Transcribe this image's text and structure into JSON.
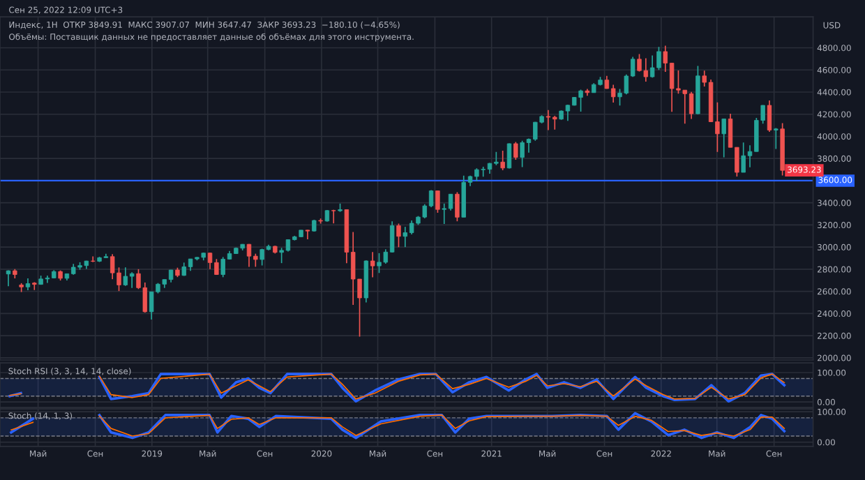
{
  "chart_data": [
    {
      "type": "candlestick",
      "title": "Индекс, 1Н  ОТКР 3849.91  МАКС 3907.07  МИН 3647.47  ЗАКР 3693.23  −180.10 (−4.65%)",
      "ylabel": "USD",
      "annotations": [
        "Сен 25, 2022 12:09 UTC+3",
        "Объёмы: Поставщик данных не предоставляет данные об объёмах для этого инструмента.",
        {
          "text": "3693.23",
          "x": "2022-11-05",
          "y": 3693.23
        }
      ],
      "colors": [
        "#26a69a",
        "#ef5350",
        "#ef5350",
        "#26a69a",
        "#ef5350",
        "#26a69a",
        "#26a69a",
        "#26a69a",
        "#ef5350",
        "#26a69a",
        "#26a69a",
        "#26a69a",
        "#26a69a",
        "#ef5350",
        "#26a69a",
        "#26a69a",
        "#ef5350",
        "#ef5350",
        "#26a69a",
        "#26a69a",
        "#ef5350",
        "#ef5350",
        "#26a69a",
        "#26a69a",
        "#26a69a",
        "#26a69a",
        "#ef5350",
        "#26a69a",
        "#26a69a",
        "#26a69a",
        "#26a69a",
        "#ef5350",
        "#ef5350",
        "#26a69a",
        "#26a69a",
        "#26a69a",
        "#26a69a",
        "#ef5350",
        "#ef5350",
        "#26a69a",
        "#26a69a",
        "#ef5350",
        "#26a69a",
        "#26a69a",
        "#26a69a",
        "#26a69a",
        "#ef5350",
        "#26a69a",
        "#ef5350",
        "#26a69a",
        "#ef5350",
        "#26a69a",
        "#ef5350",
        "#ef5350",
        "#ef5350",
        "#26a69a",
        "#ef5350",
        "#26a69a",
        "#26a69a",
        "#26a69a",
        "#ef5350",
        "#26a69a",
        "#26a69a",
        "#26a69a",
        "#26a69a",
        "#26a69a",
        "#ef5350",
        "#26a69a",
        "#26a69a",
        "#ef5350",
        "#26a69a",
        "#26a69a",
        "#26a69a",
        "#26a69a",
        "#26a69a",
        "#26a69a",
        "#ef5350",
        "#26a69a",
        "#ef5350",
        "#26a69a",
        "#26a69a",
        "#26a69a",
        "#26a69a",
        "#ef5350",
        "#ef5350",
        "#26a69a",
        "#26a69a",
        "#26a69a",
        "#26a69a",
        "#ef5350",
        "#26a69a",
        "#26a69a",
        "#ef5350",
        "#ef5350",
        "#26a69a",
        "#26a69a",
        "#26a69a",
        "#ef5350",
        "#ef5350",
        "#26a69a",
        "#26a69a",
        "#ef5350",
        "#ef5350",
        "#ef5350",
        "#ef5350",
        "#ef5350",
        "#26a69a",
        "#ef5350",
        "#ef5350",
        "#ef5350",
        "#26a69a",
        "#ef5350",
        "#ef5350",
        "#26a69a",
        "#26a69a",
        "#26a69a",
        "#26a69a",
        "#ef5350",
        "#26a69a",
        "#ef5350"
      ],
      "x": [
        "2018-02-26",
        "2018-03-12",
        "2018-03-26",
        "2018-04-09",
        "2018-04-23",
        "2018-05-07",
        "2018-05-21",
        "2018-06-04",
        "2018-06-18",
        "2018-07-02",
        "2018-07-16",
        "2018-07-30",
        "2018-08-13",
        "2018-08-27",
        "2018-09-10",
        "2018-09-24",
        "2018-10-08",
        "2018-10-22",
        "2018-11-05",
        "2018-11-19",
        "2018-12-03",
        "2018-12-17",
        "2018-12-31",
        "2019-01-14",
        "2019-01-28",
        "2019-02-11",
        "2019-02-25",
        "2019-03-11",
        "2019-03-25",
        "2019-04-08",
        "2019-04-22",
        "2019-05-06",
        "2019-05-20",
        "2019-06-03",
        "2019-06-17",
        "2019-07-01",
        "2019-07-15",
        "2019-07-29",
        "2019-08-12",
        "2019-08-26",
        "2019-09-09",
        "2019-09-23",
        "2019-10-07",
        "2019-10-21",
        "2019-11-04",
        "2019-11-18",
        "2019-12-02",
        "2019-12-16",
        "2019-12-30",
        "2020-01-13",
        "2020-01-27",
        "2020-02-10",
        "2020-02-24",
        "2020-03-09",
        "2020-03-23",
        "2020-04-06",
        "2020-04-20",
        "2020-05-04",
        "2020-05-18",
        "2020-06-01",
        "2020-06-15",
        "2020-06-29",
        "2020-07-13",
        "2020-07-27",
        "2020-08-10",
        "2020-08-24",
        "2020-09-07",
        "2020-09-21",
        "2020-10-05",
        "2020-10-19",
        "2020-11-02",
        "2020-11-16",
        "2020-11-30",
        "2020-12-14",
        "2020-12-28",
        "2021-01-11",
        "2021-01-25",
        "2021-02-08",
        "2021-02-22",
        "2021-03-08",
        "2021-03-22",
        "2021-04-05",
        "2021-04-19",
        "2021-05-03",
        "2021-05-17",
        "2021-05-31",
        "2021-06-14",
        "2021-06-28",
        "2021-07-12",
        "2021-07-26",
        "2021-08-09",
        "2021-08-23",
        "2021-09-06",
        "2021-09-20",
        "2021-10-04",
        "2021-10-18",
        "2021-11-01",
        "2021-11-15",
        "2021-11-29",
        "2021-12-13",
        "2021-12-27",
        "2022-01-10",
        "2022-01-24",
        "2022-02-07",
        "2022-02-21",
        "2022-03-07",
        "2022-03-21",
        "2022-04-04",
        "2022-04-18",
        "2022-05-02",
        "2022-05-16",
        "2022-05-30",
        "2022-06-13",
        "2022-06-27",
        "2022-07-11",
        "2022-07-25",
        "2022-08-08",
        "2022-08-22",
        "2022-09-05",
        "2022-09-19"
      ],
      "ohlc": [
        [
          2757,
          2789,
          2647,
          2786
        ],
        [
          2786,
          2801,
          2717,
          2752
        ],
        [
          2658,
          2674,
          2594,
          2640
        ],
        [
          2640,
          2717,
          2610,
          2670
        ],
        [
          2675,
          2683,
          2612,
          2663
        ],
        [
          2663,
          2742,
          2660,
          2712
        ],
        [
          2712,
          2742,
          2676,
          2721
        ],
        [
          2721,
          2791,
          2718,
          2779
        ],
        [
          2779,
          2789,
          2698,
          2718
        ],
        [
          2718,
          2760,
          2698,
          2759
        ],
        [
          2759,
          2848,
          2750,
          2818
        ],
        [
          2818,
          2863,
          2795,
          2833
        ],
        [
          2833,
          2876,
          2802,
          2874
        ],
        [
          2874,
          2916,
          2864,
          2872
        ],
        [
          2872,
          2912,
          2865,
          2904
        ],
        [
          2904,
          2940,
          2900,
          2914
        ],
        [
          2914,
          2936,
          2710,
          2767
        ],
        [
          2767,
          2816,
          2603,
          2658
        ],
        [
          2658,
          2816,
          2650,
          2736
        ],
        [
          2736,
          2772,
          2631,
          2760
        ],
        [
          2760,
          2800,
          2621,
          2633
        ],
        [
          2633,
          2680,
          2408,
          2416
        ],
        [
          2416,
          2597,
          2346,
          2596
        ],
        [
          2596,
          2675,
          2582,
          2665
        ],
        [
          2665,
          2708,
          2631,
          2707
        ],
        [
          2707,
          2794,
          2681,
          2793
        ],
        [
          2793,
          2814,
          2729,
          2744
        ],
        [
          2744,
          2860,
          2740,
          2822
        ],
        [
          2822,
          2894,
          2785,
          2893
        ],
        [
          2893,
          2910,
          2880,
          2907
        ],
        [
          2907,
          2950,
          2880,
          2946
        ],
        [
          2946,
          2950,
          2801,
          2860
        ],
        [
          2860,
          2892,
          2750,
          2752
        ],
        [
          2752,
          2910,
          2728,
          2891
        ],
        [
          2891,
          2964,
          2887,
          2941
        ],
        [
          2941,
          2996,
          2940,
          2990
        ],
        [
          2990,
          3027,
          2970,
          3025
        ],
        [
          3025,
          3028,
          2822,
          2918
        ],
        [
          2918,
          2940,
          2822,
          2888
        ],
        [
          2888,
          2985,
          2834,
          2978
        ],
        [
          2978,
          3022,
          2971,
          3007
        ],
        [
          3007,
          3012,
          2942,
          2952
        ],
        [
          2952,
          2993,
          2855,
          2970
        ],
        [
          2970,
          3068,
          2960,
          3067
        ],
        [
          3067,
          3102,
          3060,
          3093
        ],
        [
          3093,
          3154,
          3090,
          3153
        ],
        [
          3153,
          3156,
          3070,
          3145
        ],
        [
          3145,
          3247,
          3140,
          3240
        ],
        [
          3240,
          3258,
          3212,
          3235
        ],
        [
          3235,
          3335,
          3230,
          3330
        ],
        [
          3330,
          3337,
          3214,
          3328
        ],
        [
          3328,
          3393,
          3318,
          3338
        ],
        [
          3338,
          3338,
          2855,
          2954
        ],
        [
          2954,
          3136,
          2478,
          2711
        ],
        [
          2711,
          2711,
          2191,
          2541
        ],
        [
          2541,
          2879,
          2500,
          2875
        ],
        [
          2875,
          2955,
          2727,
          2830
        ],
        [
          2830,
          2945,
          2766,
          2863
        ],
        [
          2863,
          2980,
          2850,
          2955
        ],
        [
          2955,
          3233,
          2950,
          3193
        ],
        [
          3193,
          3212,
          2999,
          3097
        ],
        [
          3097,
          3183,
          3000,
          3130
        ],
        [
          3130,
          3240,
          3115,
          3215
        ],
        [
          3215,
          3280,
          3200,
          3271
        ],
        [
          3271,
          3387,
          3260,
          3372
        ],
        [
          3372,
          3514,
          3360,
          3508
        ],
        [
          3508,
          3509,
          3310,
          3340
        ],
        [
          3340,
          3393,
          3209,
          3348
        ],
        [
          3348,
          3480,
          3330,
          3478
        ],
        [
          3478,
          3496,
          3233,
          3270
        ],
        [
          3270,
          3646,
          3270,
          3585
        ],
        [
          3585,
          3645,
          3550,
          3638
        ],
        [
          3638,
          3712,
          3594,
          3699
        ],
        [
          3699,
          3726,
          3636,
          3703
        ],
        [
          3703,
          3760,
          3663,
          3756
        ],
        [
          3756,
          3859,
          3740,
          3768
        ],
        [
          3768,
          3870,
          3694,
          3714
        ],
        [
          3714,
          3937,
          3710,
          3934
        ],
        [
          3934,
          3950,
          3789,
          3811
        ],
        [
          3811,
          3960,
          3723,
          3943
        ],
        [
          3943,
          3981,
          3853,
          3974
        ],
        [
          3974,
          4130,
          3960,
          4128
        ],
        [
          4128,
          4191,
          4118,
          4180
        ],
        [
          4180,
          4238,
          4056,
          4173
        ],
        [
          4173,
          4186,
          4061,
          4156
        ],
        [
          4156,
          4234,
          4150,
          4229
        ],
        [
          4229,
          4286,
          4140,
          4281
        ],
        [
          4281,
          4356,
          4278,
          4352
        ],
        [
          4352,
          4422,
          4224,
          4411
        ],
        [
          4411,
          4429,
          4367,
          4395
        ],
        [
          4395,
          4480,
          4394,
          4468
        ],
        [
          4468,
          4537,
          4460,
          4509
        ],
        [
          4509,
          4546,
          4430,
          4432
        ],
        [
          4432,
          4466,
          4306,
          4357
        ],
        [
          4357,
          4429,
          4278,
          4391
        ],
        [
          4391,
          4559,
          4380,
          4545
        ],
        [
          4545,
          4718,
          4537,
          4697
        ],
        [
          4697,
          4743,
          4586,
          4594
        ],
        [
          4594,
          4705,
          4495,
          4538
        ],
        [
          4538,
          4731,
          4531,
          4620
        ],
        [
          4620,
          4808,
          4600,
          4766
        ],
        [
          4766,
          4819,
          4582,
          4662
        ],
        [
          4662,
          4664,
          4222,
          4432
        ],
        [
          4432,
          4595,
          4385,
          4418
        ],
        [
          4418,
          4418,
          4114,
          4385
        ],
        [
          4385,
          4401,
          4157,
          4204
        ],
        [
          4204,
          4637,
          4200,
          4546
        ],
        [
          4546,
          4593,
          4450,
          4488
        ],
        [
          4488,
          4513,
          4129,
          4132
        ],
        [
          4132,
          4307,
          3859,
          4023
        ],
        [
          4023,
          4159,
          3811,
          4158
        ],
        [
          4158,
          4204,
          3900,
          3901
        ],
        [
          3901,
          3901,
          3637,
          3675
        ],
        [
          3675,
          3945,
          3675,
          3825
        ],
        [
          3825,
          3920,
          3721,
          3863
        ],
        [
          3863,
          4167,
          3863,
          4145
        ],
        [
          4145,
          4282,
          4115,
          4280
        ],
        [
          4280,
          4325,
          4040,
          4057
        ],
        [
          4057,
          4076,
          3886,
          4067
        ],
        [
          4067,
          4119,
          3647,
          3693
        ]
      ],
      "xlim": [
        "2018-02-08",
        "2022-11-24"
      ],
      "ylim": [
        1980,
        5080
      ],
      "yticks": [
        {
          "value": 2000,
          "label": "2000.00"
        },
        {
          "value": 2200,
          "label": "2200.00"
        },
        {
          "value": 2400,
          "label": "2400.00"
        },
        {
          "value": 2600,
          "label": "2600.00"
        },
        {
          "value": 2800,
          "label": "2800.00"
        },
        {
          "value": 3000,
          "label": "3000.00"
        },
        {
          "value": 3200,
          "label": "3200.00"
        },
        {
          "value": 3400,
          "label": "3400.00"
        },
        {
          "value": 3600,
          "label": "3600.00"
        },
        {
          "value": 3800,
          "label": "3800.00"
        },
        {
          "value": 4000,
          "label": "4000.00"
        },
        {
          "value": 4200,
          "label": "4200.00"
        },
        {
          "value": 4400,
          "label": "4400.00"
        },
        {
          "value": 4600,
          "label": "4600.00"
        },
        {
          "value": 4800,
          "label": "4800.00"
        }
      ],
      "xticks": [
        {
          "value": "2018-05-01",
          "label": null
        },
        {
          "value": "2018-09-01",
          "label": null
        },
        {
          "value": "2019-01-01",
          "label": null
        },
        {
          "value": "2019-05-01",
          "label": null
        },
        {
          "value": "2019-09-01",
          "label": null
        },
        {
          "value": "2020-01-01",
          "label": null
        },
        {
          "value": "2020-05-01",
          "label": null
        },
        {
          "value": "2020-09-01",
          "label": null
        },
        {
          "value": "2021-01-01",
          "label": null
        },
        {
          "value": "2021-05-01",
          "label": null
        },
        {
          "value": "2021-09-01",
          "label": null
        },
        {
          "value": "2022-01-01",
          "label": null
        },
        {
          "value": "2022-05-01",
          "label": null
        },
        {
          "value": "2022-09-01",
          "label": null
        }
      ],
      "ref_lines": [
        {
          "axis": "y",
          "value": 3600,
          "label": "3600.00",
          "color": "#2962ff"
        }
      ],
      "grid": true,
      "tick_labels": "y"
    },
    {
      "type": "line",
      "title": "Stoch RSI (3, 3, 14, 14, close)",
      "x": [
        "2018-03-01",
        "2018-03-25",
        "2018-06-01",
        "2018-09-10",
        "2018-10-05",
        "2018-11-20",
        "2018-12-25",
        "2019-01-20",
        "2019-05-05",
        "2019-05-30",
        "2019-07-01",
        "2019-07-27",
        "2019-08-20",
        "2019-09-13",
        "2019-10-19",
        "2020-01-22",
        "2020-02-15",
        "2020-03-15",
        "2020-04-25",
        "2020-06-14",
        "2020-07-31",
        "2020-09-03",
        "2020-10-09",
        "2020-11-14",
        "2020-12-21",
        "2021-02-07",
        "2021-03-15",
        "2021-04-08",
        "2021-05-01",
        "2021-06-06",
        "2021-07-11",
        "2021-08-15",
        "2021-09-20",
        "2021-11-06",
        "2021-11-30",
        "2022-01-05",
        "2022-01-30",
        "2022-03-15",
        "2022-04-19",
        "2022-05-26",
        "2022-06-30",
        "2022-08-04",
        "2022-08-28",
        "2022-09-23"
      ],
      "series": [
        {
          "color": "#2962ff",
          "values": [
            20,
            30,
            null,
            85,
            10,
            20,
            30,
            95,
            95,
            15,
            67,
            80,
            48,
            30,
            95,
            95,
            48,
            2,
            39,
            76,
            95,
            95,
            33,
            67,
            85,
            39,
            76,
            95,
            48,
            67,
            48,
            76,
            10,
            85,
            48,
            20,
            7,
            10,
            57,
            2,
            30,
            90,
            95,
            57
          ]
        },
        {
          "color": "#ff6d00",
          "values": [
            22,
            28,
            null,
            88,
            25,
            15,
            25,
            80,
            95,
            30,
            55,
            75,
            55,
            35,
            85,
            95,
            60,
            10,
            30,
            70,
            92,
            95,
            45,
            60,
            80,
            50,
            70,
            90,
            55,
            62,
            52,
            70,
            20,
            78,
            55,
            25,
            10,
            12,
            50,
            10,
            25,
            82,
            95,
            66
          ]
        }
      ],
      "xlim": [
        "2018-02-08",
        "2022-11-24"
      ],
      "ylim": [
        -19,
        133
      ],
      "yticks": [
        {
          "value": 0,
          "label": "0.00"
        },
        {
          "value": 100,
          "label": "100.00"
        }
      ],
      "xticks": [
        {
          "value": "2018-05-01",
          "label": null
        },
        {
          "value": "2018-09-01",
          "label": null
        },
        {
          "value": "2019-01-01",
          "label": null
        },
        {
          "value": "2019-05-01",
          "label": null
        },
        {
          "value": "2019-09-01",
          "label": null
        },
        {
          "value": "2020-01-01",
          "label": null
        },
        {
          "value": "2020-05-01",
          "label": null
        },
        {
          "value": "2020-09-01",
          "label": null
        },
        {
          "value": "2021-01-01",
          "label": null
        },
        {
          "value": "2021-05-01",
          "label": null
        },
        {
          "value": "2021-09-01",
          "label": null
        },
        {
          "value": "2022-01-01",
          "label": null
        },
        {
          "value": "2022-05-01",
          "label": null
        },
        {
          "value": "2022-09-01",
          "label": null
        }
      ],
      "bands": [
        {
          "axis": "y",
          "from": 20,
          "to": 80,
          "color": "#2962ff"
        }
      ],
      "ref_lines": [
        {
          "axis": "y",
          "value": 80,
          "color": "#787b86",
          "line_style": "dashed"
        },
        {
          "axis": "y",
          "value": 20,
          "color": "#787b86",
          "line_style": "dashed"
        }
      ],
      "grid": true,
      "tick_labels": "y"
    },
    {
      "type": "line",
      "title": "Stoch (14, 1, 3)",
      "x": [
        "2018-03-04",
        "2018-04-20",
        "2018-06-01",
        "2018-09-10",
        "2018-10-05",
        "2018-11-20",
        "2018-12-25",
        "2019-01-30",
        "2019-05-05",
        "2019-05-22",
        "2019-06-21",
        "2019-07-27",
        "2019-08-20",
        "2019-09-25",
        "2020-01-22",
        "2020-02-15",
        "2020-03-15",
        "2020-05-08",
        "2020-07-31",
        "2020-09-16",
        "2020-10-15",
        "2020-11-14",
        "2020-12-21",
        "2021-03-15",
        "2021-05-12",
        "2021-07-11",
        "2021-09-06",
        "2021-10-01",
        "2021-11-06",
        "2021-12-11",
        "2022-01-16",
        "2022-02-20",
        "2022-03-29",
        "2022-05-01",
        "2022-06-06",
        "2022-07-12",
        "2022-08-04",
        "2022-08-28",
        "2022-09-23"
      ],
      "series": [
        {
          "color": "#2962ff",
          "values": [
            32,
            77,
            null,
            89,
            32,
            14,
            32,
            89,
            89,
            32,
            86,
            77,
            50,
            86,
            77,
            41,
            14,
            68,
            89,
            89,
            32,
            77,
            86,
            86,
            86,
            89,
            86,
            41,
            95,
            68,
            23,
            41,
            14,
            32,
            14,
            50,
            89,
            77,
            36
          ]
        },
        {
          "color": "#ff6d00",
          "values": [
            40,
            65,
            null,
            86,
            45,
            20,
            28,
            80,
            88,
            45,
            75,
            80,
            58,
            80,
            80,
            50,
            22,
            60,
            85,
            89,
            45,
            70,
            84,
            85,
            85,
            88,
            85,
            55,
            85,
            72,
            35,
            38,
            22,
            30,
            20,
            42,
            82,
            82,
            45
          ]
        }
      ],
      "xlim": [
        "2018-02-08",
        "2022-11-24"
      ],
      "ylim": [
        -14,
        109
      ],
      "yticks": [
        {
          "value": 0,
          "label": "0.00"
        },
        {
          "value": 100,
          "label": "100.00"
        }
      ],
      "xticks": [
        {
          "value": "2018-05-01",
          "label": "Май"
        },
        {
          "value": "2018-09-01",
          "label": "Сен"
        },
        {
          "value": "2019-01-01",
          "label": "2019"
        },
        {
          "value": "2019-05-01",
          "label": "Май"
        },
        {
          "value": "2019-09-01",
          "label": "Сен"
        },
        {
          "value": "2020-01-01",
          "label": "2020"
        },
        {
          "value": "2020-05-01",
          "label": "Май"
        },
        {
          "value": "2020-09-01",
          "label": "Сен"
        },
        {
          "value": "2021-01-01",
          "label": "2021"
        },
        {
          "value": "2021-05-01",
          "label": "Май"
        },
        {
          "value": "2021-09-01",
          "label": "Сен"
        },
        {
          "value": "2022-01-01",
          "label": "2022"
        },
        {
          "value": "2022-05-01",
          "label": "Май"
        },
        {
          "value": "2022-09-01",
          "label": "Сен"
        }
      ],
      "bands": [
        {
          "axis": "y",
          "from": 20,
          "to": 80,
          "color": "#2962ff"
        }
      ],
      "ref_lines": [
        {
          "axis": "y",
          "value": 80,
          "color": "#787b86",
          "line_style": "dashed"
        },
        {
          "axis": "y",
          "value": 20,
          "color": "#787b86",
          "line_style": "dashed"
        }
      ],
      "grid": true
    }
  ]
}
